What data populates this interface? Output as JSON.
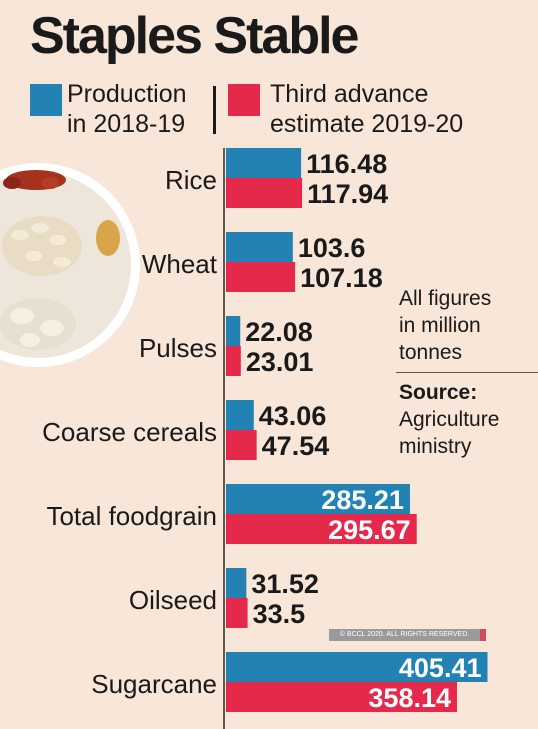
{
  "title": "Staples Stable",
  "legend": {
    "production": "Production in 2018-19",
    "production_line1": "Production",
    "production_line2": "in 2018-19",
    "estimate": "Third advance estimate 2019-20",
    "estimate_line1": "Third advance",
    "estimate_line2": "estimate 2019-20"
  },
  "note": {
    "units_line1": "All figures",
    "units_line2": "in million",
    "units_line3": "tonnes",
    "source_label": "Source:",
    "source_line1": "Agriculture",
    "source_line2": "ministry"
  },
  "copyright": "© BCCL 2020. ALL RIGHTS RESERVED.",
  "colors": {
    "production": "#2182b3",
    "estimate": "#e5294b",
    "background": "#f8e6d9",
    "text": "#1a1a1a"
  },
  "chart_data": {
    "type": "bar",
    "orientation": "horizontal",
    "categories": [
      "Rice",
      "Wheat",
      "Pulses",
      "Coarse cereals",
      "Total foodgrain",
      "Oilseed",
      "Sugarcane"
    ],
    "series": [
      {
        "name": "Production in 2018-19",
        "values": [
          116.48,
          103.6,
          22.08,
          43.06,
          285.21,
          31.52,
          405.41
        ]
      },
      {
        "name": "Third advance estimate 2019-20",
        "values": [
          117.94,
          107.18,
          23.01,
          47.54,
          295.67,
          33.5,
          358.14
        ]
      }
    ],
    "value_labels": [
      [
        "116.48",
        "103.6",
        "22.08",
        "43.06",
        "285.21",
        "31.52",
        "405.41"
      ],
      [
        "117.94",
        "107.18",
        "23.01",
        "47.54",
        "295.67",
        "33.5",
        "358.14"
      ]
    ],
    "units": "million tonnes",
    "grid": false,
    "legend_position": "top"
  }
}
